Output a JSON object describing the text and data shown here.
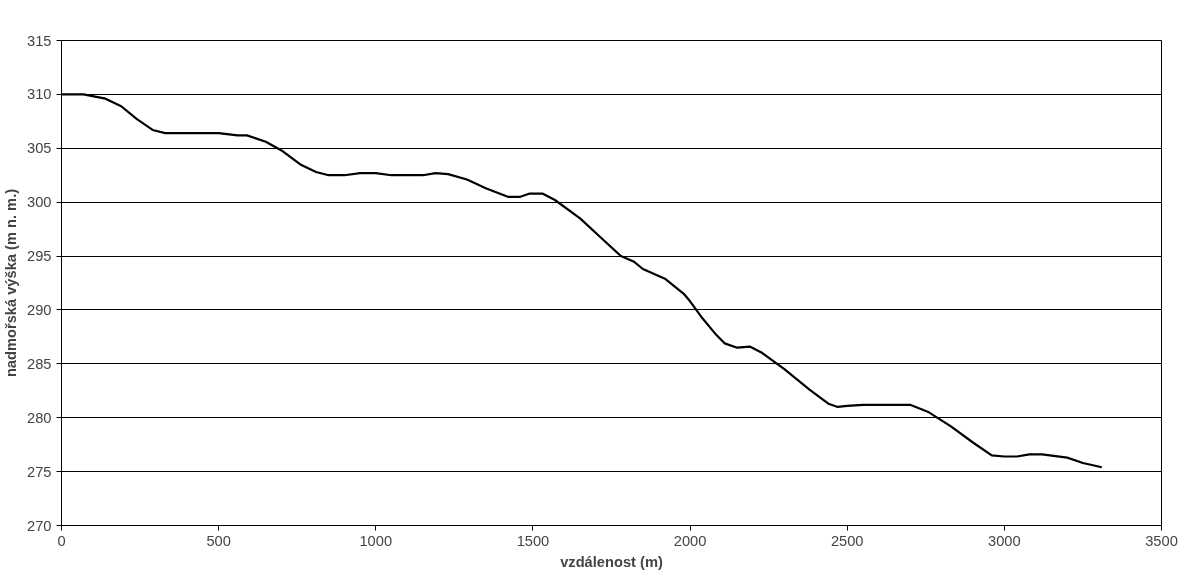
{
  "chart_data": {
    "type": "line",
    "xlabel": "vzdálenost (m)",
    "ylabel": "nadmořská výška (m n. m.)",
    "xlim": [
      0,
      3500
    ],
    "xticks": [
      0,
      500,
      1000,
      1500,
      2000,
      2500,
      3000,
      3500
    ],
    "ylim": [
      270,
      315
    ],
    "yticks": [
      270,
      275,
      280,
      285,
      290,
      295,
      300,
      305,
      310,
      315
    ],
    "grid": "y",
    "line_style": "solid",
    "series": [
      {
        "color": "#000000",
        "x": [
          0,
          70,
          140,
          190,
          240,
          290,
          330,
          500,
          560,
          590,
          650,
          700,
          760,
          810,
          850,
          900,
          950,
          1000,
          1050,
          1150,
          1190,
          1230,
          1290,
          1350,
          1420,
          1460,
          1490,
          1530,
          1570,
          1650,
          1720,
          1780,
          1820,
          1850,
          1920,
          1980,
          2000,
          2040,
          2080,
          2110,
          2150,
          2190,
          2230,
          2300,
          2380,
          2440,
          2470,
          2500,
          2550,
          2700,
          2760,
          2830,
          2900,
          2960,
          3000,
          3040,
          3080,
          3120,
          3200,
          3250,
          3310
        ],
        "values": [
          310,
          310,
          309.6,
          308.9,
          307.7,
          306.7,
          306.4,
          306.4,
          306.2,
          306.2,
          305.6,
          304.8,
          303.5,
          302.8,
          302.5,
          302.5,
          302.7,
          302.7,
          302.5,
          302.5,
          302.7,
          302.6,
          302.1,
          301.3,
          300.5,
          300.5,
          300.8,
          300.8,
          300.2,
          298.5,
          296.6,
          295.0,
          294.5,
          293.8,
          292.9,
          291.5,
          290.8,
          289.2,
          287.8,
          286.9,
          286.5,
          286.6,
          286.0,
          284.5,
          282.6,
          281.3,
          281.0,
          281.1,
          281.2,
          281.2,
          280.5,
          279.2,
          277.7,
          276.5,
          276.4,
          276.4,
          276.6,
          276.6,
          276.3,
          275.8,
          275.4
        ]
      }
    ]
  }
}
